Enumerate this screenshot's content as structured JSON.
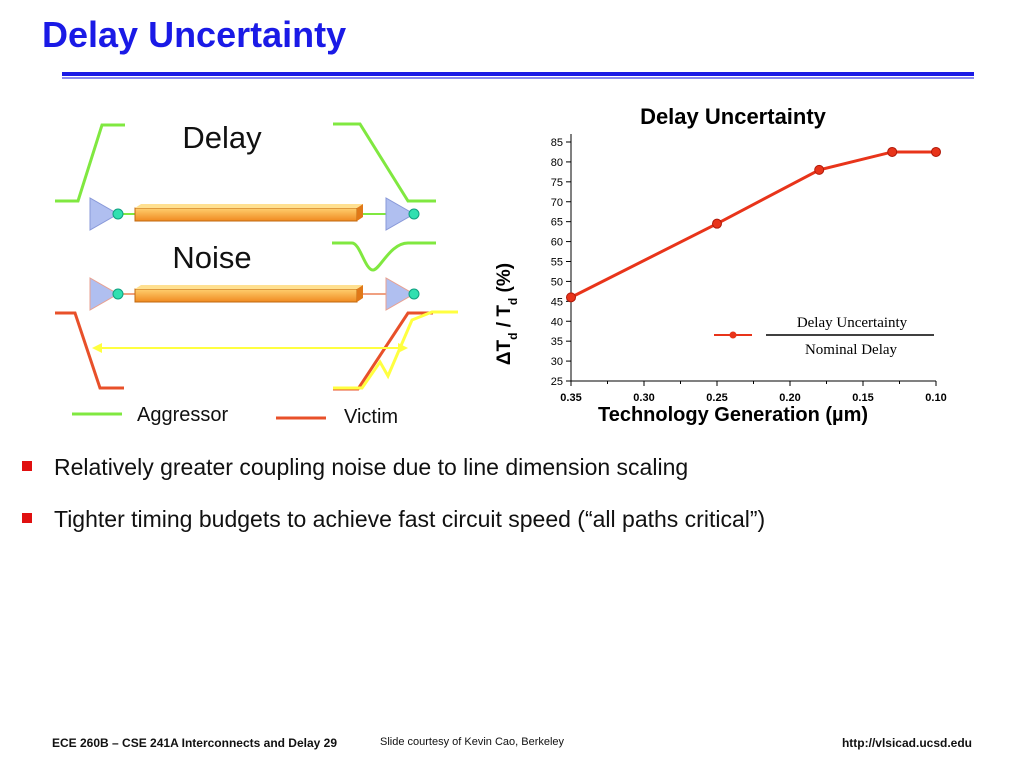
{
  "slide": {
    "title": "Delay Uncertainty"
  },
  "diagram": {
    "delay_label": "Delay",
    "noise_label": "Noise",
    "legend_aggressor": "Aggressor",
    "legend_victim": "Victim",
    "colors": {
      "aggressor": "#80e840",
      "victim": "#e8502a",
      "wire": "#f5a030",
      "driver": "#b0bff0",
      "arrow": "#ffff40"
    }
  },
  "chart_data": {
    "type": "line",
    "title": "Delay Uncertainty",
    "xlabel": "Technology Generation (µm)",
    "ylabel_parts": [
      "Δ",
      "T",
      "d",
      " / ",
      "T",
      "d",
      " (%)"
    ],
    "x": [
      0.35,
      0.25,
      0.18,
      0.13,
      0.1
    ],
    "y": [
      46,
      64.5,
      78,
      82.5,
      82.5
    ],
    "xlim": [
      0.35,
      0.1
    ],
    "x_ticks": [
      "0.35",
      "0.30",
      "0.25",
      "0.20",
      "0.15",
      "0.10"
    ],
    "ylim": [
      25,
      85
    ],
    "y_ticks": [
      25,
      30,
      35,
      40,
      45,
      50,
      55,
      60,
      65,
      70,
      75,
      80,
      85
    ],
    "legend": {
      "numerator": "Delay Uncertainty",
      "denominator": "Nominal Delay",
      "placement": "lower-right"
    },
    "series_color": "#e8341a",
    "grid": false
  },
  "bullets": [
    "Relatively greater coupling noise due to line dimension scaling",
    "Tighter timing budgets to achieve fast circuit speed (“all paths critical”)"
  ],
  "footer": {
    "left": "ECE 260B – CSE 241A Interconnects and Delay 29",
    "middle": "Slide courtesy of Kevin Cao, Berkeley",
    "right": "http://vlsicad.ucsd.edu"
  }
}
